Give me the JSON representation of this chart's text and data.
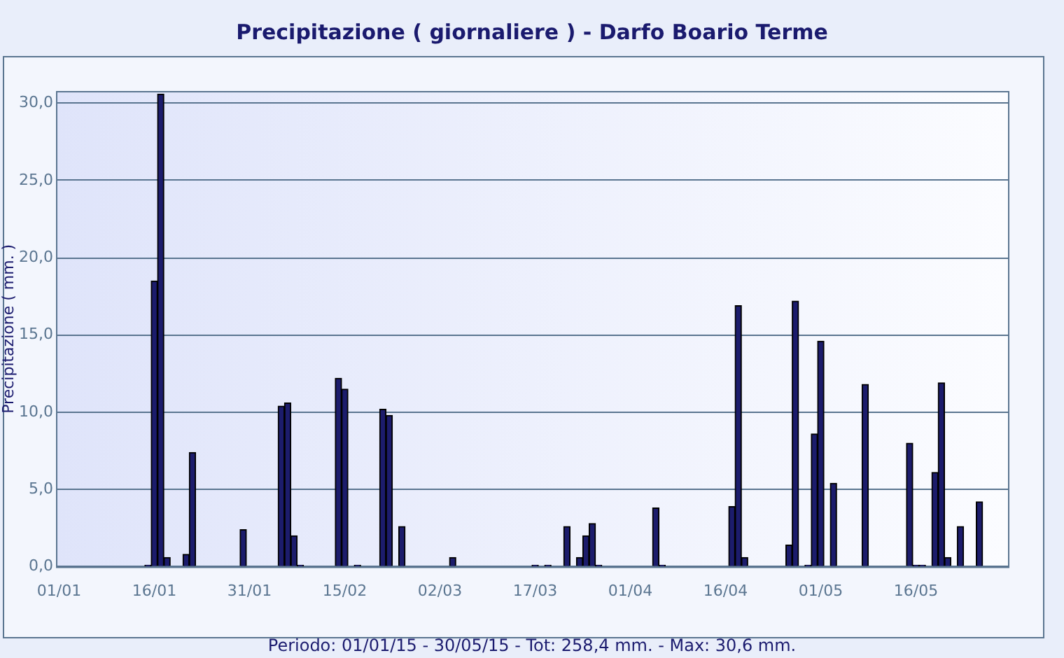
{
  "chart_data": {
    "type": "bar",
    "title": "Precipitazione ( giornaliere ) - Darfo Boario Terme",
    "ylabel": "Precipitazione ( mm. )",
    "annotations": [
      "Periodo: 01/01/15 - 30/05/15 - Tot: 258,4 mm. - Max: 30,6 mm."
    ],
    "categories": [
      "01/01",
      null,
      null,
      null,
      null,
      null,
      null,
      null,
      null,
      null,
      null,
      null,
      null,
      null,
      null,
      "16/01",
      null,
      null,
      null,
      null,
      null,
      null,
      null,
      null,
      null,
      null,
      null,
      null,
      null,
      null,
      "31/01",
      null,
      null,
      null,
      null,
      null,
      null,
      null,
      null,
      null,
      null,
      null,
      null,
      null,
      null,
      "15/02",
      null,
      null,
      null,
      null,
      null,
      null,
      null,
      null,
      null,
      null,
      null,
      null,
      null,
      null,
      "02/03",
      null,
      null,
      null,
      null,
      null,
      null,
      null,
      null,
      null,
      null,
      null,
      null,
      null,
      null,
      "17/03",
      null,
      null,
      null,
      null,
      null,
      null,
      null,
      null,
      null,
      null,
      null,
      null,
      null,
      null,
      "01/04",
      null,
      null,
      null,
      null,
      null,
      null,
      null,
      null,
      null,
      null,
      null,
      null,
      null,
      null,
      "16/04",
      null,
      null,
      null,
      null,
      null,
      null,
      null,
      null,
      null,
      null,
      null,
      null,
      null,
      null,
      "01/05",
      null,
      null,
      null,
      null,
      null,
      null,
      null,
      null,
      null,
      null,
      null,
      null,
      null,
      null,
      "16/05",
      null,
      null,
      null,
      null,
      null,
      null,
      null,
      null,
      null,
      null,
      null,
      null,
      null,
      null
    ],
    "values": [
      null,
      null,
      null,
      null,
      null,
      null,
      null,
      null,
      null,
      null,
      null,
      null,
      null,
      null,
      0.1,
      18.5,
      30.6,
      0.6,
      null,
      null,
      0.8,
      7.4,
      null,
      null,
      null,
      null,
      null,
      null,
      null,
      2.4,
      null,
      null,
      null,
      null,
      null,
      10.4,
      10.6,
      2.0,
      0.1,
      null,
      null,
      null,
      null,
      null,
      12.2,
      11.5,
      null,
      0.1,
      null,
      null,
      null,
      10.2,
      9.8,
      null,
      2.6,
      null,
      null,
      null,
      null,
      null,
      null,
      null,
      0.6,
      null,
      null,
      null,
      null,
      null,
      null,
      null,
      null,
      null,
      null,
      null,
      null,
      0.1,
      null,
      0.1,
      null,
      null,
      2.6,
      null,
      0.6,
      2.0,
      2.8,
      0.1,
      null,
      null,
      null,
      null,
      null,
      null,
      null,
      null,
      3.8,
      0.1,
      null,
      null,
      null,
      null,
      null,
      null,
      null,
      null,
      null,
      null,
      3.9,
      16.9,
      0.6,
      null,
      null,
      null,
      null,
      null,
      null,
      1.4,
      17.2,
      null,
      0.1,
      8.6,
      14.6,
      null,
      5.4,
      null,
      null,
      null,
      null,
      11.8,
      null,
      null,
      null,
      null,
      null,
      null,
      8.0,
      0.1,
      0.1,
      null,
      6.1,
      11.9,
      0.6,
      null,
      2.6,
      null,
      null,
      4.2,
      null,
      null,
      null,
      null
    ],
    "color": "#1c1c6c",
    "ylim": [
      0,
      30.8
    ],
    "yticks": [
      {
        "value": 0,
        "label": "0,0"
      },
      {
        "value": 5,
        "label": "5,0"
      },
      {
        "value": 10,
        "label": "10,0"
      },
      {
        "value": 15,
        "label": "15,0"
      },
      {
        "value": 20,
        "label": "20,0"
      },
      {
        "value": 25,
        "label": "25,0"
      },
      {
        "value": 30,
        "label": "30,0"
      }
    ],
    "grid": "y",
    "legend": false
  }
}
